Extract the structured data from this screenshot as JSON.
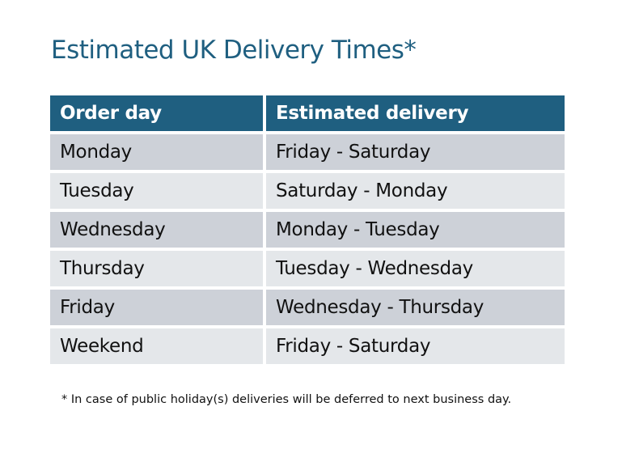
{
  "title": "Estimated UK Delivery Times*",
  "table": {
    "headers": [
      "Order day",
      "Estimated delivery"
    ],
    "rows": [
      [
        "Monday",
        "Friday - Saturday"
      ],
      [
        "Tuesday",
        "Saturday - Monday"
      ],
      [
        "Wednesday",
        "Monday - Tuesday"
      ],
      [
        "Thursday",
        "Tuesday - Wednesday"
      ],
      [
        "Friday",
        "Wednesday - Thursday"
      ],
      [
        "Weekend",
        "Friday - Saturday"
      ]
    ]
  },
  "footnote": "* In case of public holiday(s) deliveries will be deferred to next business day.",
  "colors": {
    "header": "#1f5f80",
    "row_odd": "#cdd1d8",
    "row_even": "#e4e7ea"
  }
}
